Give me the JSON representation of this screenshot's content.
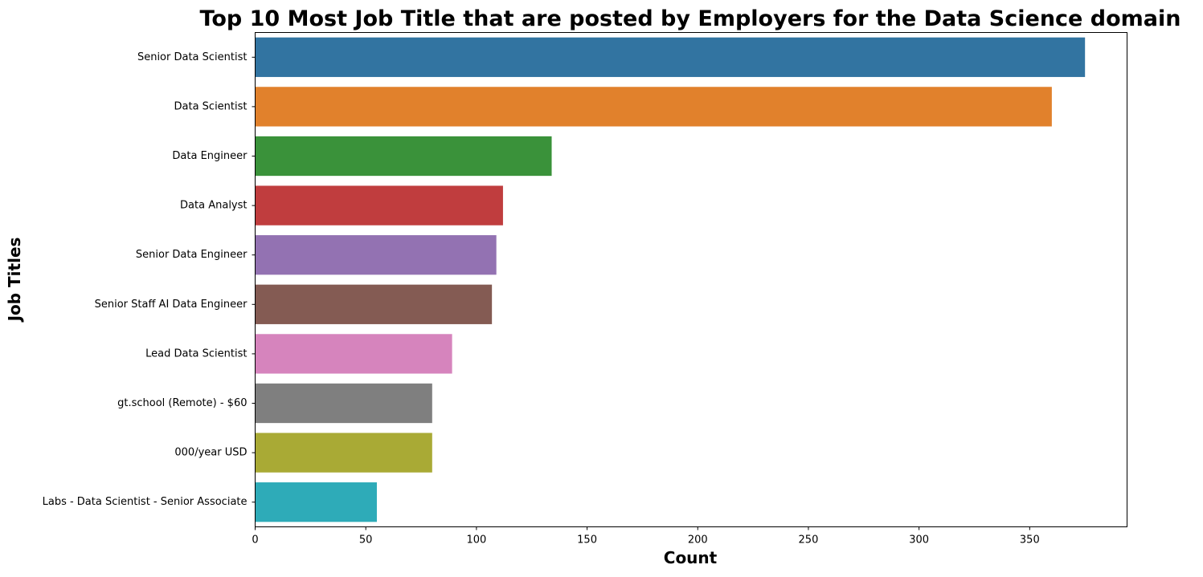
{
  "chart_data": {
    "type": "bar",
    "orientation": "horizontal",
    "title": "Top 10 Most Job Title that are posted by Employers for the Data Science domain",
    "xlabel": "Count",
    "ylabel": "Job Titles",
    "xlim": [
      0,
      394
    ],
    "xticks": [
      0,
      50,
      100,
      150,
      200,
      250,
      300,
      350
    ],
    "grid": false,
    "legend": "none",
    "categories": [
      "Senior Data Scientist",
      "Data Scientist",
      "Data Engineer",
      "Data Analyst",
      "Senior Data Engineer",
      "Senior Staff AI Data Engineer",
      "Lead Data Scientist",
      "gt.school (Remote) - $60",
      "000/year USD",
      "Labs - Data Scientist - Senior Associate"
    ],
    "values": [
      375,
      360,
      134,
      112,
      109,
      107,
      89,
      80,
      80,
      55
    ],
    "colors": [
      "#3274a1",
      "#e1812c",
      "#3a923a",
      "#c03d3e",
      "#9372b2",
      "#845b53",
      "#d684bd",
      "#7f7f7f",
      "#a9aa35",
      "#2eabb8"
    ]
  }
}
